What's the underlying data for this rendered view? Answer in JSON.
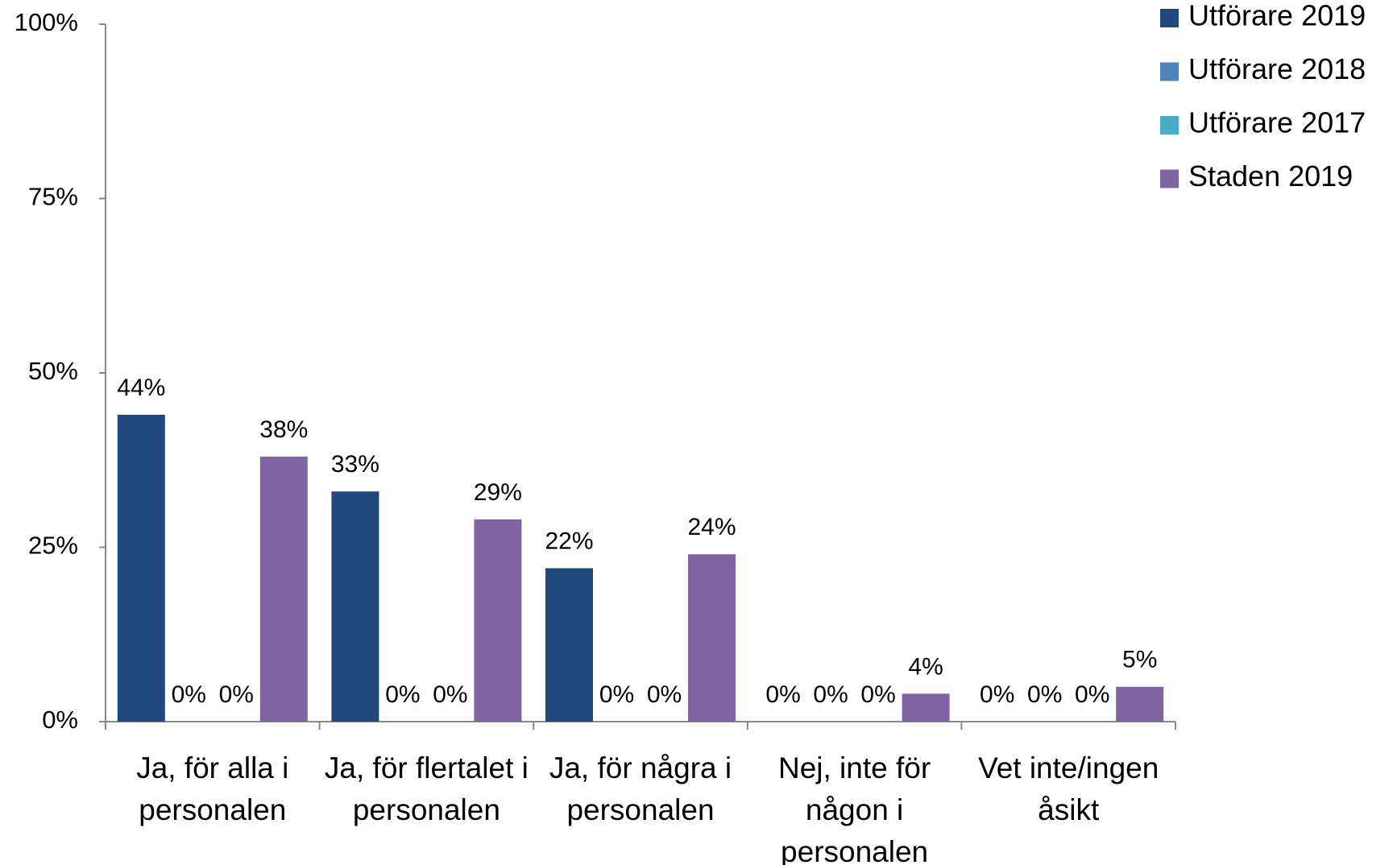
{
  "chart_data": {
    "type": "bar",
    "categories": [
      "Ja, för alla i personalen",
      "Ja, för flertalet i personalen",
      "Ja, för några i personalen",
      "Nej, inte för någon i personalen",
      "Vet inte/ingen åsikt"
    ],
    "series": [
      {
        "name": "Utförare 2019",
        "color": "#1f497d",
        "values": [
          44,
          33,
          22,
          0,
          0
        ],
        "value_labels": [
          "44%",
          "33%",
          "22%",
          "0%",
          "0%"
        ]
      },
      {
        "name": "Utförare 2018",
        "color": "#4f81bd",
        "values": [
          0,
          0,
          0,
          0,
          0
        ],
        "value_labels": [
          "0%",
          "0%",
          "0%",
          "0%",
          "0%"
        ]
      },
      {
        "name": "Utförare 2017",
        "color": "#4bacc6",
        "values": [
          0,
          0,
          0,
          0,
          0
        ],
        "value_labels": [
          "0%",
          "0%",
          "0%",
          "0%",
          "0%"
        ]
      },
      {
        "name": "Staden 2019",
        "color": "#8064a2",
        "values": [
          38,
          29,
          24,
          4,
          5
        ],
        "value_labels": [
          "38%",
          "29%",
          "24%",
          "4%",
          "5%"
        ]
      }
    ],
    "ylim": [
      0,
      100
    ],
    "yticks": [
      {
        "value": 0,
        "label": "0%"
      },
      {
        "value": 25,
        "label": "25%"
      },
      {
        "value": 50,
        "label": "50%"
      },
      {
        "value": 75,
        "label": "75%"
      },
      {
        "value": 100,
        "label": "100%"
      }
    ],
    "legend": "top-right"
  }
}
